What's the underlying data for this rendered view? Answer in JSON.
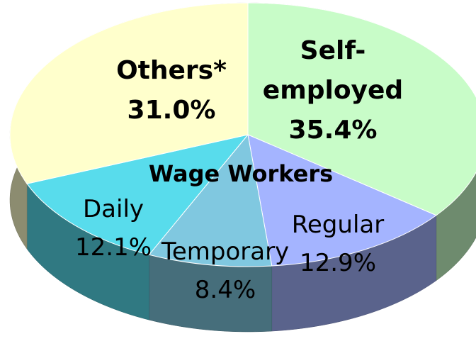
{
  "chart_data": {
    "type": "pie",
    "categories": [
      "Self-employed",
      "Regular",
      "Temporary",
      "Daily",
      "Others*"
    ],
    "values": [
      35.4,
      12.9,
      8.4,
      12.1,
      31.0
    ],
    "value_labels": [
      "35.4%",
      "12.9%",
      "8.4%",
      "12.1%",
      "31.0%"
    ],
    "colors": [
      "#c8fcc8",
      "#a4b4ff",
      "#80c8e0",
      "#58dcec",
      "#ffffcc"
    ],
    "annotation": "Wage Workers"
  }
}
